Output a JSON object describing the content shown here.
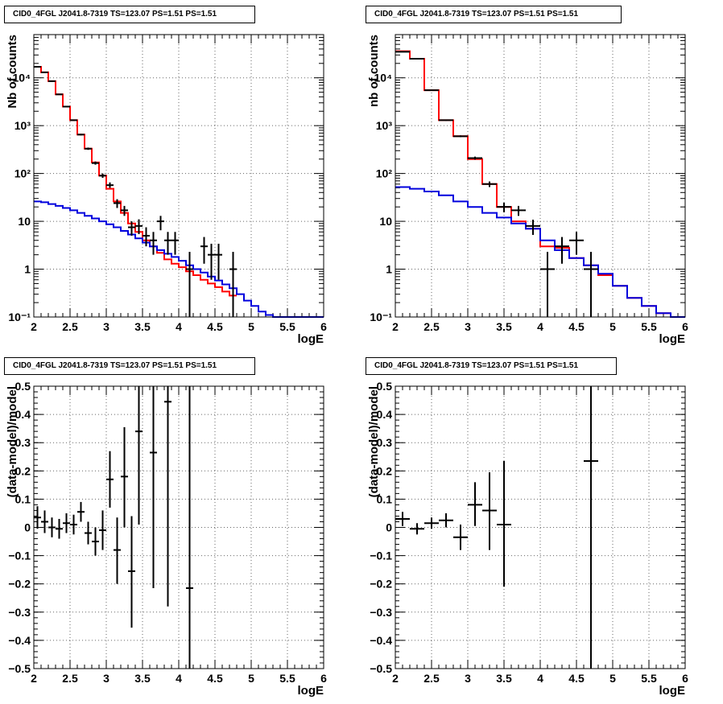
{
  "colors": {
    "data": "#000000",
    "total_model": "#ff0000",
    "background_model": "#0000dd"
  },
  "chart_data": [
    {
      "type": "line",
      "title": "CID0_4FGL J2041.8-7319 TS=123.07 PS=1.51 PS=1.51",
      "xlabel": "logE",
      "ylabel": "Nb of counts",
      "xlim": [
        2,
        6
      ],
      "ylim": [
        0.1,
        80000
      ],
      "ylog": true,
      "grid": true,
      "x_ticks": [
        2,
        2.5,
        3,
        3.5,
        4,
        4.5,
        5,
        5.5,
        6
      ],
      "x_tick_labels": [
        "2",
        "2.5",
        "3",
        "3.5",
        "4",
        "4.5",
        "5",
        "5.5",
        "6"
      ],
      "y_ticks": [
        0.1,
        1,
        10,
        100,
        1000,
        10000
      ],
      "y_tick_labels": [
        "10⁻¹",
        "1",
        "10",
        "10²",
        "10³",
        "10⁴"
      ],
      "step_series": [
        {
          "role": "total",
          "color": "#ff0000",
          "edges": [
            2,
            2.1,
            2.2,
            2.3,
            2.4,
            2.5,
            2.6,
            2.7,
            2.8,
            2.9,
            3.0,
            3.1,
            3.2,
            3.3,
            3.4,
            3.5,
            3.6,
            3.7,
            3.8,
            3.9,
            4.0,
            4.1,
            4.2,
            4.3,
            4.4,
            4.5,
            4.6,
            4.7,
            4.8
          ],
          "values": [
            17000,
            13000,
            8500,
            4500,
            2500,
            1300,
            650,
            330,
            170,
            90,
            48,
            26,
            15,
            9,
            6,
            4,
            3,
            2.2,
            1.6,
            1.3,
            1.1,
            0.9,
            0.75,
            0.6,
            0.5,
            0.42,
            0.34,
            0.28
          ]
        },
        {
          "role": "background",
          "color": "#0000dd",
          "edges": [
            2,
            2.1,
            2.2,
            2.3,
            2.4,
            2.5,
            2.6,
            2.7,
            2.8,
            2.9,
            3.0,
            3.1,
            3.2,
            3.3,
            3.4,
            3.5,
            3.6,
            3.7,
            3.8,
            3.9,
            4.0,
            4.1,
            4.2,
            4.3,
            4.4,
            4.5,
            4.6,
            4.7,
            4.8,
            4.9,
            5.0,
            5.1,
            5.2,
            5.3,
            5.4,
            6.0
          ],
          "values": [
            26,
            25,
            23,
            21,
            19,
            17,
            15,
            13,
            11.5,
            10,
            8.7,
            7.5,
            6.3,
            5.3,
            4.4,
            3.6,
            3.0,
            2.5,
            2.1,
            1.8,
            1.5,
            1.2,
            1.0,
            0.85,
            0.7,
            0.58,
            0.48,
            0.4,
            0.3,
            0.22,
            0.17,
            0.13,
            0.11,
            0.1,
            0.1
          ]
        }
      ],
      "points": [
        {
          "x": 2.05,
          "y": 17000,
          "xerr": 0.05,
          "yl": 16800,
          "yh": 17200
        },
        {
          "x": 2.15,
          "y": 13000,
          "xerr": 0.05,
          "yl": 12800,
          "yh": 13200
        },
        {
          "x": 2.25,
          "y": 8500,
          "xerr": 0.05,
          "yl": 8300,
          "yh": 8700
        },
        {
          "x": 2.35,
          "y": 4500,
          "xerr": 0.05,
          "yl": 4400,
          "yh": 4600
        },
        {
          "x": 2.45,
          "y": 2500,
          "xerr": 0.05,
          "yl": 2450,
          "yh": 2550
        },
        {
          "x": 2.55,
          "y": 1300,
          "xerr": 0.05,
          "yl": 1260,
          "yh": 1340
        },
        {
          "x": 2.65,
          "y": 650,
          "xerr": 0.05,
          "yl": 625,
          "yh": 675
        },
        {
          "x": 2.75,
          "y": 330,
          "xerr": 0.05,
          "yl": 312,
          "yh": 348
        },
        {
          "x": 2.85,
          "y": 165,
          "xerr": 0.05,
          "yl": 153,
          "yh": 178
        },
        {
          "x": 2.95,
          "y": 90,
          "xerr": 0.05,
          "yl": 81,
          "yh": 100
        },
        {
          "x": 3.05,
          "y": 57,
          "xerr": 0.05,
          "yl": 50,
          "yh": 65
        },
        {
          "x": 3.15,
          "y": 24,
          "xerr": 0.05,
          "yl": 19,
          "yh": 29
        },
        {
          "x": 3.25,
          "y": 17,
          "xerr": 0.05,
          "yl": 13,
          "yh": 21
        },
        {
          "x": 3.35,
          "y": 7.5,
          "xerr": 0.05,
          "yl": 5,
          "yh": 10
        },
        {
          "x": 3.45,
          "y": 8,
          "xerr": 0.05,
          "yl": 5.4,
          "yh": 11
        },
        {
          "x": 3.55,
          "y": 5,
          "xerr": 0.05,
          "yl": 3,
          "yh": 7.5
        },
        {
          "x": 3.65,
          "y": 4,
          "xerr": 0.05,
          "yl": 2,
          "yh": 6
        },
        {
          "x": 3.75,
          "y": 10,
          "xerr": 0.05,
          "yl": 6.5,
          "yh": 13
        },
        {
          "x": 3.85,
          "y": 4,
          "xerr": 0.05,
          "yl": 2,
          "yh": 6
        },
        {
          "x": 3.95,
          "y": 4,
          "xerr": 0.05,
          "yl": 2,
          "yh": 6
        },
        {
          "x": 4.15,
          "y": 1,
          "xerr": 0.05,
          "yl": 0.1,
          "yh": 2.3
        },
        {
          "x": 4.35,
          "y": 3,
          "xerr": 0.05,
          "yl": 1.3,
          "yh": 4.7
        },
        {
          "x": 4.45,
          "y": 2,
          "xerr": 0.05,
          "yl": 0.6,
          "yh": 3.4
        },
        {
          "x": 4.55,
          "y": 2,
          "xerr": 0.05,
          "yl": 0.6,
          "yh": 3.4
        },
        {
          "x": 4.75,
          "y": 1,
          "xerr": 0.05,
          "yl": 0.1,
          "yh": 2.3
        }
      ]
    },
    {
      "type": "line",
      "title": "CID0_4FGL J2041.8-7319 TS=123.07 PS=1.51 PS=1.51",
      "xlabel": "logE",
      "ylabel": "nb of counts",
      "xlim": [
        2,
        6
      ],
      "ylim": [
        0.1,
        80000
      ],
      "ylog": true,
      "grid": true,
      "x_ticks": [
        2,
        2.5,
        3,
        3.5,
        4,
        4.5,
        5,
        5.5,
        6
      ],
      "x_tick_labels": [
        "2",
        "2.5",
        "3",
        "3.5",
        "4",
        "4.5",
        "5",
        "5.5",
        "6"
      ],
      "y_ticks": [
        0.1,
        1,
        10,
        100,
        1000,
        10000
      ],
      "y_tick_labels": [
        "10⁻¹",
        "1",
        "10",
        "10²",
        "10³",
        "10⁴"
      ],
      "step_series": [
        {
          "role": "total",
          "color": "#ff0000",
          "edges": [
            2,
            2.2,
            2.4,
            2.6,
            2.8,
            3.0,
            3.2,
            3.4,
            3.6,
            3.8,
            4.0,
            4.2,
            4.4,
            4.6,
            4.8,
            5.0,
            5.2,
            5.4,
            5.6,
            5.8
          ],
          "values": [
            36000,
            25000,
            5500,
            1300,
            600,
            200,
            60,
            20,
            10,
            7,
            3,
            2.8,
            1.7,
            1.2,
            0.75,
            0.45,
            0.25,
            0.17,
            0.12
          ],
          "note": ""
        },
        {
          "role": "background",
          "color": "#0000dd",
          "edges": [
            2,
            2.2,
            2.4,
            2.6,
            2.8,
            3.0,
            3.2,
            3.4,
            3.6,
            3.8,
            4.0,
            4.2,
            4.4,
            4.6,
            4.8,
            5.0,
            5.2,
            5.4,
            5.6,
            5.8,
            6.0
          ],
          "values": [
            52,
            48,
            42,
            35,
            26,
            20,
            15,
            12,
            9,
            7,
            4,
            2.5,
            1.7,
            1.2,
            0.8,
            0.45,
            0.25,
            0.17,
            0.12,
            0.1
          ]
        }
      ],
      "points": [
        {
          "x": 2.1,
          "y": 35000,
          "xerr": 0.1,
          "yl": 34700,
          "yh": 35300
        },
        {
          "x": 2.3,
          "y": 25000,
          "xerr": 0.1,
          "yl": 24800,
          "yh": 25200
        },
        {
          "x": 2.5,
          "y": 5500,
          "xerr": 0.1,
          "yl": 5400,
          "yh": 5600
        },
        {
          "x": 2.7,
          "y": 1300,
          "xerr": 0.1,
          "yl": 1260,
          "yh": 1340
        },
        {
          "x": 2.9,
          "y": 600,
          "xerr": 0.1,
          "yl": 575,
          "yh": 625
        },
        {
          "x": 3.1,
          "y": 210,
          "xerr": 0.1,
          "yl": 195,
          "yh": 225
        },
        {
          "x": 3.3,
          "y": 60,
          "xerr": 0.1,
          "yl": 52,
          "yh": 68
        },
        {
          "x": 3.5,
          "y": 20,
          "xerr": 0.1,
          "yl": 15.5,
          "yh": 24.5
        },
        {
          "x": 3.7,
          "y": 17,
          "xerr": 0.1,
          "yl": 13,
          "yh": 21
        },
        {
          "x": 3.9,
          "y": 8,
          "xerr": 0.1,
          "yl": 5.2,
          "yh": 10.8
        },
        {
          "x": 4.1,
          "y": 1,
          "xerr": 0.1,
          "yl": 0.1,
          "yh": 2.3
        },
        {
          "x": 4.3,
          "y": 3,
          "xerr": 0.1,
          "yl": 1.3,
          "yh": 4.7
        },
        {
          "x": 4.5,
          "y": 4,
          "xerr": 0.1,
          "yl": 2,
          "yh": 6
        },
        {
          "x": 4.7,
          "y": 1,
          "xerr": 0.1,
          "yl": 0.1,
          "yh": 2.3
        }
      ]
    },
    {
      "type": "scatter",
      "title": "CID0_4FGL J2041.8-7319 TS=123.07 PS=1.51 PS=1.51",
      "xlabel": "logE",
      "ylabel": "(data-model)/model",
      "xlim": [
        2,
        6
      ],
      "ylim": [
        -0.5,
        0.5
      ],
      "ylog": false,
      "grid": true,
      "x_ticks": [
        2,
        2.5,
        3,
        3.5,
        4,
        4.5,
        5,
        5.5,
        6
      ],
      "x_tick_labels": [
        "2",
        "2.5",
        "3",
        "3.5",
        "4",
        "4.5",
        "5",
        "5.5",
        "6"
      ],
      "y_ticks": [
        -0.5,
        -0.4,
        -0.3,
        -0.2,
        -0.1,
        0,
        0.1,
        0.2,
        0.3,
        0.4,
        0.5
      ],
      "y_tick_labels": [
        "−0.5",
        "−0.4",
        "−0.3",
        "−0.2",
        "−0.1",
        "0",
        "0.1",
        "0.2",
        "0.3",
        "0.4",
        "0.5"
      ],
      "step_series": [],
      "points": [
        {
          "x": 2.05,
          "y": 0.035,
          "xerr": 0.05,
          "yl": -0.005,
          "yh": 0.075
        },
        {
          "x": 2.15,
          "y": 0.02,
          "xerr": 0.05,
          "yl": -0.02,
          "yh": 0.06
        },
        {
          "x": 2.25,
          "y": 0.0,
          "xerr": 0.05,
          "yl": -0.035,
          "yh": 0.035
        },
        {
          "x": 2.35,
          "y": -0.005,
          "xerr": 0.05,
          "yl": -0.04,
          "yh": 0.03
        },
        {
          "x": 2.45,
          "y": 0.015,
          "xerr": 0.05,
          "yl": -0.02,
          "yh": 0.05
        },
        {
          "x": 2.55,
          "y": 0.01,
          "xerr": 0.05,
          "yl": -0.025,
          "yh": 0.045
        },
        {
          "x": 2.65,
          "y": 0.055,
          "xerr": 0.05,
          "yl": 0.02,
          "yh": 0.09
        },
        {
          "x": 2.75,
          "y": -0.02,
          "xerr": 0.05,
          "yl": -0.06,
          "yh": 0.02
        },
        {
          "x": 2.85,
          "y": -0.05,
          "xerr": 0.05,
          "yl": -0.1,
          "yh": 0.0
        },
        {
          "x": 2.95,
          "y": -0.01,
          "xerr": 0.05,
          "yl": -0.08,
          "yh": 0.06
        },
        {
          "x": 3.05,
          "y": 0.17,
          "xerr": 0.05,
          "yl": 0.07,
          "yh": 0.27
        },
        {
          "x": 3.15,
          "y": -0.08,
          "xerr": 0.05,
          "yl": -0.2,
          "yh": 0.035
        },
        {
          "x": 3.25,
          "y": 0.18,
          "xerr": 0.05,
          "yl": 0.0,
          "yh": 0.355
        },
        {
          "x": 3.35,
          "y": -0.155,
          "xerr": 0.05,
          "yl": -0.355,
          "yh": 0.04
        },
        {
          "x": 3.45,
          "y": 0.34,
          "xerr": 0.05,
          "yl": 0.01,
          "yh": 0.5
        },
        {
          "x": 3.65,
          "y": 0.265,
          "xerr": 0.05,
          "yl": -0.215,
          "yh": 0.5
        },
        {
          "x": 3.85,
          "y": 0.445,
          "xerr": 0.05,
          "yl": -0.28,
          "yh": 0.5
        },
        {
          "x": 4.15,
          "y": -0.215,
          "xerr": 0.05,
          "yl": -0.5,
          "yh": 0.5
        }
      ]
    },
    {
      "type": "scatter",
      "title": "CID0_4FGL J2041.8-7319 TS=123.07 PS=1.51 PS=1.51",
      "xlabel": "logE",
      "ylabel": "(data-model)/model",
      "xlim": [
        2,
        6
      ],
      "ylim": [
        -0.5,
        0.5
      ],
      "ylog": false,
      "grid": true,
      "x_ticks": [
        2,
        2.5,
        3,
        3.5,
        4,
        4.5,
        5,
        5.5,
        6
      ],
      "x_tick_labels": [
        "2",
        "2.5",
        "3",
        "3.5",
        "4",
        "4.5",
        "5",
        "5.5",
        "6"
      ],
      "y_ticks": [
        -0.5,
        -0.4,
        -0.3,
        -0.2,
        -0.1,
        0,
        0.1,
        0.2,
        0.3,
        0.4,
        0.5
      ],
      "y_tick_labels": [
        "−0.5",
        "−0.4",
        "−0.3",
        "−0.2",
        "−0.1",
        "0",
        "0.1",
        "0.2",
        "0.3",
        "0.4",
        "0.5"
      ],
      "step_series": [],
      "points": [
        {
          "x": 2.1,
          "y": 0.03,
          "xerr": 0.1,
          "yl": 0.005,
          "yh": 0.055
        },
        {
          "x": 2.3,
          "y": -0.005,
          "xerr": 0.1,
          "yl": -0.025,
          "yh": 0.015
        },
        {
          "x": 2.5,
          "y": 0.015,
          "xerr": 0.1,
          "yl": -0.005,
          "yh": 0.035
        },
        {
          "x": 2.7,
          "y": 0.025,
          "xerr": 0.1,
          "yl": 0.0,
          "yh": 0.05
        },
        {
          "x": 2.9,
          "y": -0.035,
          "xerr": 0.1,
          "yl": -0.08,
          "yh": 0.01
        },
        {
          "x": 3.1,
          "y": 0.08,
          "xerr": 0.1,
          "yl": 0.005,
          "yh": 0.16
        },
        {
          "x": 3.3,
          "y": 0.06,
          "xerr": 0.1,
          "yl": -0.08,
          "yh": 0.195
        },
        {
          "x": 3.5,
          "y": 0.01,
          "xerr": 0.1,
          "yl": -0.21,
          "yh": 0.235
        },
        {
          "x": 4.7,
          "y": 0.235,
          "xerr": 0.1,
          "yl": -0.5,
          "yh": 0.5
        }
      ]
    }
  ]
}
